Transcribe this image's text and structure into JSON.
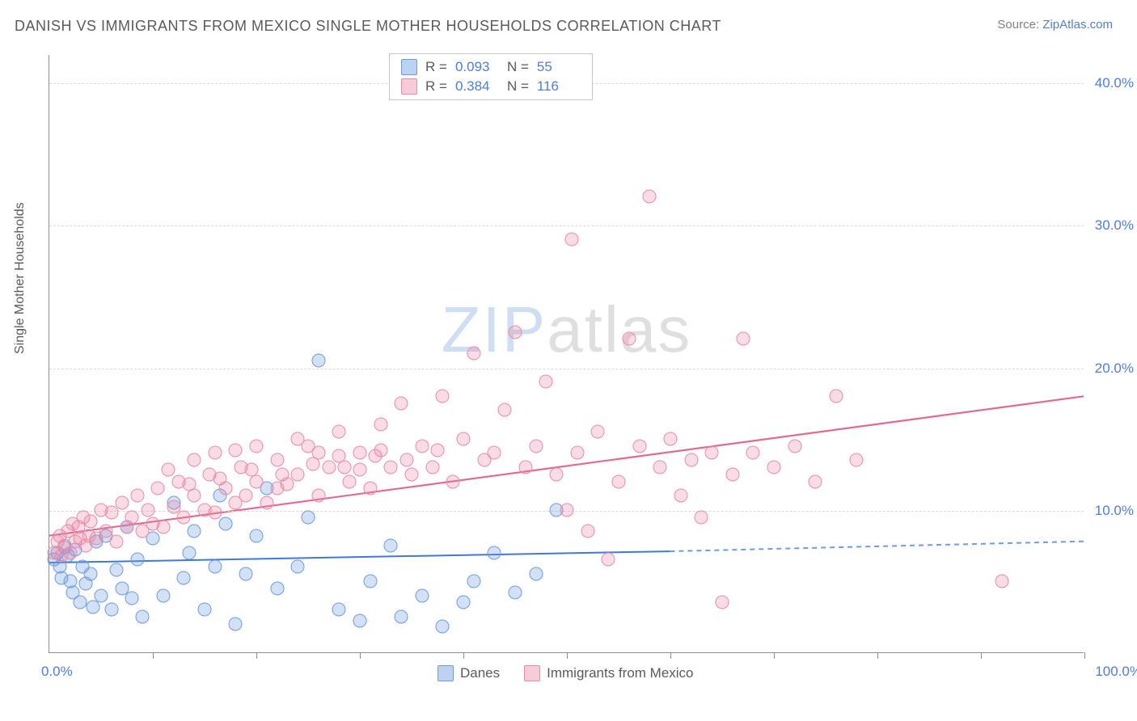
{
  "header": {
    "title": "DANISH VS IMMIGRANTS FROM MEXICO SINGLE MOTHER HOUSEHOLDS CORRELATION CHART",
    "source_prefix": "Source: ",
    "source_link": "ZipAtlas.com"
  },
  "chart": {
    "type": "scatter",
    "y_axis_label": "Single Mother Households",
    "xlim": [
      0,
      100
    ],
    "ylim": [
      0,
      42
    ],
    "x_ticks": [
      0,
      10,
      20,
      30,
      40,
      50,
      60,
      70,
      80,
      90,
      100
    ],
    "x_tick_labels_shown": {
      "min": "0.0%",
      "max": "100.0%"
    },
    "y_gridlines": [
      10,
      20,
      30,
      40
    ],
    "y_tick_labels": [
      "10.0%",
      "20.0%",
      "30.0%",
      "40.0%"
    ],
    "background_color": "#ffffff",
    "grid_color": "#d9d9d9",
    "axis_color": "#8f8f8f",
    "label_color": "#5a5a5a",
    "tick_label_color": "#4f7dd6",
    "tick_label_fontsize": 17,
    "watermark": {
      "text_z": "ZIP",
      "text_rest": "atlas"
    },
    "series": [
      {
        "name": "Danes",
        "legend_label": "Danes",
        "color_fill": "rgba(105,155,225,0.30)",
        "color_stroke": "#6c9ce0",
        "marker_size": 17,
        "stats": {
          "R": "0.093",
          "N": "55"
        },
        "trendline": {
          "x1": 0,
          "y1": 6.3,
          "x2": 60,
          "y2": 7.1,
          "extend_x2": 100,
          "extend_y2": 7.8,
          "solid_color": "#3f78d8",
          "dash_color": "#6c9ce0",
          "width": 2
        },
        "points": [
          [
            0.5,
            6.5
          ],
          [
            0.8,
            7.0
          ],
          [
            1.0,
            6.0
          ],
          [
            1.2,
            5.2
          ],
          [
            1.5,
            7.4
          ],
          [
            1.8,
            6.8
          ],
          [
            2.0,
            5.0
          ],
          [
            2.3,
            4.2
          ],
          [
            2.5,
            7.2
          ],
          [
            3.0,
            3.5
          ],
          [
            3.2,
            6.0
          ],
          [
            3.5,
            4.8
          ],
          [
            4.0,
            5.5
          ],
          [
            4.2,
            3.2
          ],
          [
            4.5,
            7.8
          ],
          [
            5.0,
            4.0
          ],
          [
            5.5,
            8.2
          ],
          [
            6.0,
            3.0
          ],
          [
            6.5,
            5.8
          ],
          [
            7.0,
            4.5
          ],
          [
            7.5,
            8.8
          ],
          [
            8.0,
            3.8
          ],
          [
            8.5,
            6.5
          ],
          [
            9.0,
            2.5
          ],
          [
            10.0,
            8.0
          ],
          [
            11.0,
            4.0
          ],
          [
            12.0,
            10.5
          ],
          [
            13.0,
            5.2
          ],
          [
            14.0,
            8.5
          ],
          [
            15.0,
            3.0
          ],
          [
            16.0,
            6.0
          ],
          [
            17.0,
            9.0
          ],
          [
            18.0,
            2.0
          ],
          [
            19.0,
            5.5
          ],
          [
            20.0,
            8.2
          ],
          [
            21.0,
            11.5
          ],
          [
            22.0,
            4.5
          ],
          [
            24.0,
            6.0
          ],
          [
            25.0,
            9.5
          ],
          [
            26.0,
            20.5
          ],
          [
            28.0,
            3.0
          ],
          [
            30.0,
            2.2
          ],
          [
            31.0,
            5.0
          ],
          [
            33.0,
            7.5
          ],
          [
            34.0,
            2.5
          ],
          [
            36.0,
            4.0
          ],
          [
            38.0,
            1.8
          ],
          [
            40.0,
            3.5
          ],
          [
            41.0,
            5.0
          ],
          [
            43.0,
            7.0
          ],
          [
            45.0,
            4.2
          ],
          [
            47.0,
            5.5
          ],
          [
            49.0,
            10.0
          ],
          [
            13.5,
            7.0
          ],
          [
            16.5,
            11.0
          ]
        ]
      },
      {
        "name": "Immigrants from Mexico",
        "legend_label": "Immigrants from Mexico",
        "color_fill": "rgba(235,130,160,0.28)",
        "color_stroke": "#e98ba5",
        "marker_size": 17,
        "stats": {
          "R": "0.384",
          "N": "116"
        },
        "trendline": {
          "x1": 0,
          "y1": 8.2,
          "x2": 100,
          "y2": 18.0,
          "solid_color": "#e26a8c",
          "width": 2.2
        },
        "points": [
          [
            0.5,
            7.0
          ],
          [
            0.8,
            7.8
          ],
          [
            1.0,
            8.2
          ],
          [
            1.2,
            6.8
          ],
          [
            1.5,
            7.5
          ],
          [
            1.8,
            8.5
          ],
          [
            2.0,
            7.0
          ],
          [
            2.3,
            9.0
          ],
          [
            2.5,
            7.8
          ],
          [
            2.8,
            8.8
          ],
          [
            3.0,
            8.0
          ],
          [
            3.3,
            9.5
          ],
          [
            3.5,
            7.5
          ],
          [
            3.8,
            8.2
          ],
          [
            4.0,
            9.2
          ],
          [
            4.5,
            8.0
          ],
          [
            5.0,
            10.0
          ],
          [
            5.5,
            8.5
          ],
          [
            6.0,
            9.8
          ],
          [
            6.5,
            7.8
          ],
          [
            7.0,
            10.5
          ],
          [
            7.5,
            8.8
          ],
          [
            8.0,
            9.5
          ],
          [
            8.5,
            11.0
          ],
          [
            9.0,
            8.5
          ],
          [
            9.5,
            10.0
          ],
          [
            10.0,
            9.0
          ],
          [
            10.5,
            11.5
          ],
          [
            11.0,
            8.8
          ],
          [
            12.0,
            10.2
          ],
          [
            12.5,
            12.0
          ],
          [
            13.0,
            9.5
          ],
          [
            14.0,
            11.0
          ],
          [
            15.0,
            10.0
          ],
          [
            15.5,
            12.5
          ],
          [
            16.0,
            9.8
          ],
          [
            17.0,
            11.5
          ],
          [
            18.0,
            10.5
          ],
          [
            18.5,
            13.0
          ],
          [
            19.0,
            11.0
          ],
          [
            20.0,
            12.0
          ],
          [
            21.0,
            10.5
          ],
          [
            22.0,
            13.5
          ],
          [
            23.0,
            11.8
          ],
          [
            24.0,
            12.5
          ],
          [
            25.0,
            14.5
          ],
          [
            26.0,
            11.0
          ],
          [
            27.0,
            13.0
          ],
          [
            28.0,
            15.5
          ],
          [
            29.0,
            12.0
          ],
          [
            30.0,
            14.0
          ],
          [
            31.0,
            11.5
          ],
          [
            32.0,
            16.0
          ],
          [
            33.0,
            13.0
          ],
          [
            34.0,
            17.5
          ],
          [
            35.0,
            12.5
          ],
          [
            36.0,
            14.5
          ],
          [
            37.0,
            13.0
          ],
          [
            38.0,
            18.0
          ],
          [
            39.0,
            12.0
          ],
          [
            40.0,
            15.0
          ],
          [
            41.0,
            21.0
          ],
          [
            42.0,
            13.5
          ],
          [
            43.0,
            14.0
          ],
          [
            44.0,
            17.0
          ],
          [
            45.0,
            22.5
          ],
          [
            46.0,
            13.0
          ],
          [
            47.0,
            14.5
          ],
          [
            48.0,
            19.0
          ],
          [
            49.0,
            12.5
          ],
          [
            50.0,
            10.0
          ],
          [
            50.5,
            29.0
          ],
          [
            51.0,
            14.0
          ],
          [
            52.0,
            8.5
          ],
          [
            53.0,
            15.5
          ],
          [
            54.0,
            6.5
          ],
          [
            55.0,
            12.0
          ],
          [
            56.0,
            22.0
          ],
          [
            57.0,
            14.5
          ],
          [
            58.0,
            32.0
          ],
          [
            59.0,
            13.0
          ],
          [
            60.0,
            15.0
          ],
          [
            61.0,
            11.0
          ],
          [
            62.0,
            13.5
          ],
          [
            63.0,
            9.5
          ],
          [
            64.0,
            14.0
          ],
          [
            65.0,
            3.5
          ],
          [
            66.0,
            12.5
          ],
          [
            67.0,
            22.0
          ],
          [
            68.0,
            14.0
          ],
          [
            70.0,
            13.0
          ],
          [
            72.0,
            14.5
          ],
          [
            74.0,
            12.0
          ],
          [
            76.0,
            18.0
          ],
          [
            78.0,
            13.5
          ],
          [
            92.0,
            5.0
          ],
          [
            11.5,
            12.8
          ],
          [
            13.5,
            11.8
          ],
          [
            16.5,
            12.2
          ],
          [
            19.5,
            12.8
          ],
          [
            22.5,
            12.5
          ],
          [
            25.5,
            13.2
          ],
          [
            28.5,
            13.0
          ],
          [
            31.5,
            13.8
          ],
          [
            34.5,
            13.5
          ],
          [
            37.5,
            14.2
          ],
          [
            16.0,
            14.0
          ],
          [
            20.0,
            14.5
          ],
          [
            24.0,
            15.0
          ],
          [
            28.0,
            13.8
          ],
          [
            32.0,
            14.2
          ],
          [
            14.0,
            13.5
          ],
          [
            18.0,
            14.2
          ],
          [
            22.0,
            11.5
          ],
          [
            26.0,
            14.0
          ],
          [
            30.0,
            12.8
          ]
        ]
      }
    ],
    "legend_top": {
      "r_label": "R =",
      "n_label": "N ="
    },
    "legend_bottom_labels": [
      "Danes",
      "Immigrants from Mexico"
    ]
  }
}
